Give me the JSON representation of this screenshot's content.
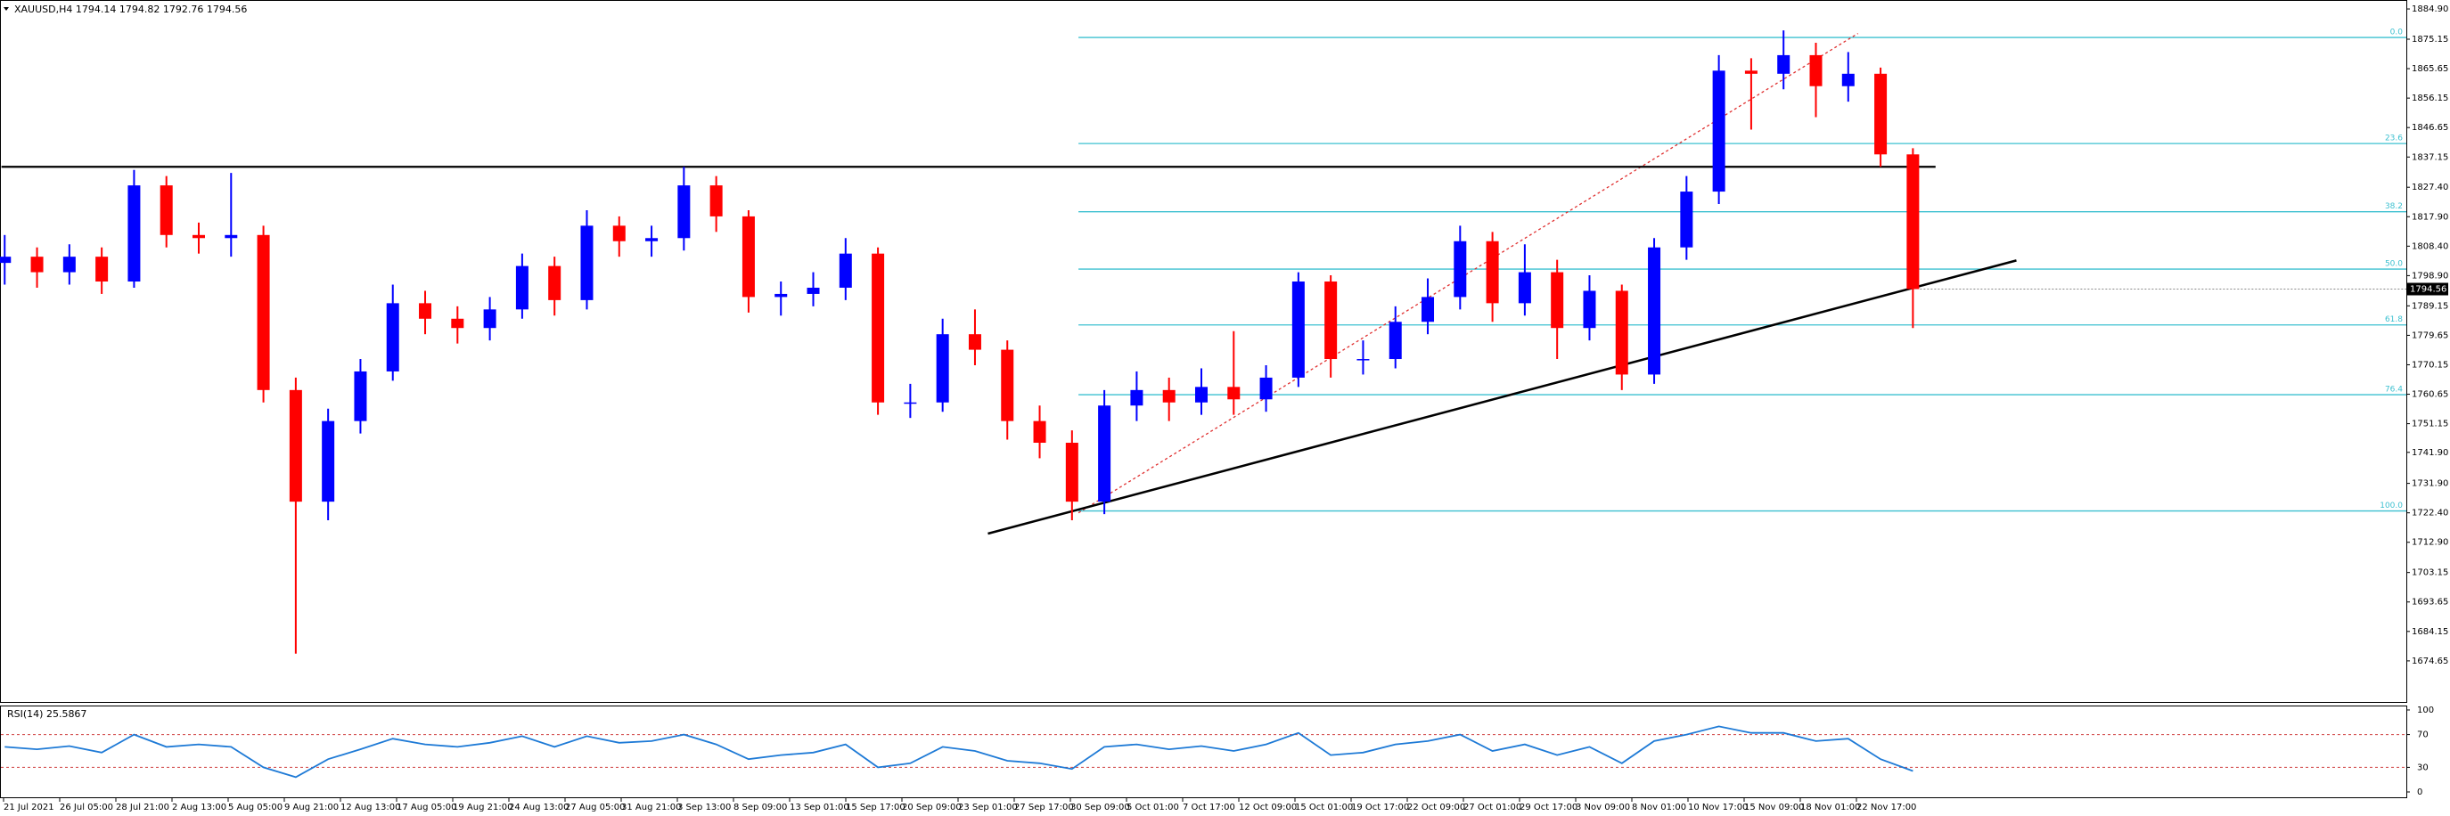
{
  "chart_data": [
    {
      "type": "candlestick",
      "title": "XAUUSD,H4  1794.14 1794.82 1792.76 1794.56",
      "up_color": "#0000ff",
      "down_color": "#ff0000",
      "open": [
        1803,
        1805,
        1800,
        1805,
        1797,
        1828,
        1812,
        1811,
        1812,
        1762,
        1726,
        1752,
        1768,
        1790,
        1785,
        1782,
        1788,
        1802,
        1791,
        1815,
        1810,
        1811,
        1828,
        1818,
        1792,
        1793,
        1795,
        1806,
        1758,
        1758,
        1780,
        1775,
        1752,
        1745,
        1726,
        1757,
        1762,
        1758,
        1763,
        1759,
        1766,
        1797,
        1772,
        1772,
        1784,
        1792,
        1810,
        1790,
        1800,
        1782,
        1794,
        1767,
        1808,
        1826,
        1865,
        1864,
        1870,
        1860,
        1864,
        1838
      ],
      "high": [
        1812,
        1808,
        1809,
        1808,
        1833,
        1831,
        1816,
        1832,
        1815,
        1766,
        1756,
        1772,
        1796,
        1794,
        1789,
        1792,
        1806,
        1805,
        1820,
        1818,
        1815,
        1834,
        1831,
        1820,
        1797,
        1800,
        1811,
        1808,
        1764,
        1785,
        1788,
        1778,
        1757,
        1749,
        1762,
        1768,
        1766,
        1769,
        1781,
        1770,
        1800,
        1799,
        1778,
        1789,
        1798,
        1815,
        1813,
        1809,
        1804,
        1799,
        1796,
        1811,
        1831,
        1870,
        1869,
        1878,
        1874,
        1871,
        1866,
        1840
      ],
      "low": [
        1796,
        1795,
        1796,
        1793,
        1795,
        1808,
        1806,
        1805,
        1758,
        1677,
        1720,
        1748,
        1765,
        1780,
        1777,
        1778,
        1785,
        1786,
        1788,
        1805,
        1805,
        1807,
        1813,
        1787,
        1786,
        1789,
        1791,
        1754,
        1753,
        1755,
        1770,
        1746,
        1740,
        1720,
        1722,
        1752,
        1752,
        1754,
        1754,
        1755,
        1763,
        1766,
        1767,
        1769,
        1780,
        1788,
        1784,
        1786,
        1772,
        1778,
        1762,
        1764,
        1804,
        1822,
        1846,
        1859,
        1850,
        1855,
        1834,
        1782
      ],
      "close": [
        1805,
        1800,
        1805,
        1797,
        1828,
        1812,
        1811,
        1812,
        1762,
        1726,
        1752,
        1768,
        1790,
        1785,
        1782,
        1788,
        1802,
        1791,
        1815,
        1810,
        1811,
        1828,
        1818,
        1792,
        1793,
        1795,
        1806,
        1758,
        1758,
        1780,
        1775,
        1752,
        1745,
        1726,
        1757,
        1762,
        1758,
        1763,
        1759,
        1766,
        1797,
        1772,
        1772,
        1784,
        1792,
        1810,
        1790,
        1800,
        1782,
        1794,
        1767,
        1808,
        1826,
        1865,
        1864,
        1870,
        1860,
        1864,
        1838,
        1794.56
      ],
      "ylim": [
        1661.4,
        1887.5
      ],
      "yticks": [
        {
          "value": 1884.9,
          "label": "1884.90"
        },
        1875.15,
        1865.65,
        1856.15,
        1846.65,
        1837.15,
        {
          "value": 1827.4,
          "label": "1827.40"
        },
        {
          "value": 1817.9,
          "label": "1817.90"
        },
        {
          "value": 1808.4,
          "label": "1808.40"
        },
        {
          "value": 1798.9,
          "label": "1798.90"
        },
        1789.15,
        1779.65,
        1770.15,
        1760.65,
        1751.15,
        {
          "value": 1741.9,
          "label": "1741.90"
        },
        {
          "value": 1731.9,
          "label": "1731.90"
        },
        {
          "value": 1722.4,
          "label": "1722.40"
        },
        {
          "value": 1712.9,
          "label": "1712.90"
        },
        1703.15,
        1693.65,
        1684.15,
        1674.65
      ],
      "x_labels": [
        "21 Jul 2021",
        "26 Jul 05:00",
        "28 Jul 21:00",
        "2 Aug 13:00",
        "5 Aug 05:00",
        "9 Aug 21:00",
        "12 Aug 13:00",
        "17 Aug 05:00",
        "19 Aug 21:00",
        "24 Aug 13:00",
        "27 Aug 05:00",
        "31 Aug 21:00",
        "3 Sep 13:00",
        "8 Sep 09:00",
        "13 Sep 01:00",
        "15 Sep 17:00",
        "20 Sep 09:00",
        "23 Sep 01:00",
        "27 Sep 17:00",
        "30 Sep 09:00",
        "5 Oct 01:00",
        "7 Oct 17:00",
        "12 Oct 09:00",
        "15 Oct 01:00",
        "19 Oct 17:00",
        "22 Oct 09:00",
        "27 Oct 01:00",
        "29 Oct 17:00",
        "3 Nov 09:00",
        "8 Nov 01:00",
        "10 Nov 17:00",
        "15 Nov 09:00",
        "18 Nov 01:00",
        "22 Nov 17:00"
      ],
      "resistance": {
        "value": 1834,
        "x": [
          -0.1,
          59.7
        ]
      },
      "trendline": {
        "x": [
          30.4,
          62.2
        ],
        "y": [
          1715.7,
          1803.8
        ]
      },
      "fib_line": {
        "x": [
          33.2,
          57.3
        ],
        "y": [
          1722.4,
          1877
        ]
      },
      "fib_color": "#3cc0d0",
      "fib_start": 33.2,
      "fib_levels": [
        {
          "label": "0.0",
          "value": 1875.7
        },
        {
          "label": "23.6",
          "value": 1841.5
        },
        {
          "label": "38.2",
          "value": 1819.5
        },
        {
          "label": "50.0",
          "value": 1801
        },
        {
          "label": "61.8",
          "value": 1783
        },
        {
          "label": "76.4",
          "value": 1760.5
        },
        {
          "label": "100.0",
          "value": 1723
        }
      ]
    },
    {
      "type": "line",
      "title": "RSI(14) 25.5867",
      "series": [
        {
          "name": "RSI(14)",
          "color": "#1e7ad6",
          "values": [
            55,
            52,
            56,
            48,
            70,
            55,
            58,
            55,
            30,
            18,
            40,
            52,
            65,
            58,
            55,
            60,
            68,
            55,
            68,
            60,
            62,
            70,
            58,
            40,
            45,
            48,
            58,
            30,
            35,
            55,
            50,
            38,
            35,
            28,
            55,
            58,
            52,
            56,
            50,
            58,
            72,
            45,
            48,
            58,
            62,
            70,
            50,
            58,
            45,
            55,
            35,
            62,
            70,
            80,
            72,
            72,
            62,
            65,
            40,
            25.5867
          ]
        }
      ],
      "ylim": [
        -7.6,
        105.4
      ],
      "yticks": [
        0,
        30,
        70,
        100
      ],
      "levels": [
        70,
        30
      ],
      "level_color": "#d04040"
    }
  ]
}
